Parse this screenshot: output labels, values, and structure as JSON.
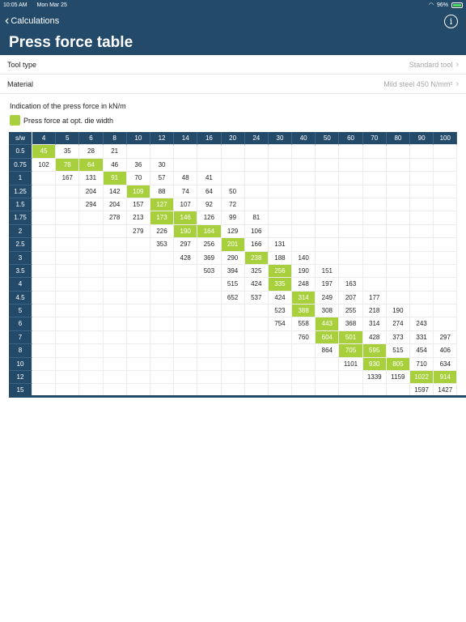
{
  "status": {
    "time": "10:05 AM",
    "date": "Mon Mar 25",
    "battery": "96%"
  },
  "nav": {
    "back_label": "Calculations",
    "title": "Press force table"
  },
  "settings": [
    {
      "label": "Tool type",
      "value": "Standard tool"
    },
    {
      "label": "Material",
      "value": "Mild steel 450 N/mm²"
    }
  ],
  "caption": "Indication of the press force in kN/m",
  "legend": "Press force at opt. die width",
  "colors": {
    "header": "#244a6a",
    "highlight": "#a8cf3c"
  },
  "table": {
    "corner": "s/w",
    "columns": [
      "4",
      "5",
      "6",
      "8",
      "10",
      "12",
      "14",
      "16",
      "20",
      "24",
      "30",
      "40",
      "50",
      "60",
      "70",
      "80",
      "90",
      "100"
    ],
    "rows": [
      {
        "label": "0.5",
        "cells": [
          "45",
          "35",
          "28",
          "21",
          "",
          "",
          "",
          "",
          "",
          "",
          "",
          "",
          "",
          "",
          "",
          "",
          "",
          ""
        ],
        "hl": [
          0
        ]
      },
      {
        "label": "0.75",
        "cells": [
          "102",
          "78",
          "64",
          "46",
          "36",
          "30",
          "",
          "",
          "",
          "",
          "",
          "",
          "",
          "",
          "",
          "",
          "",
          ""
        ],
        "hl": [
          1,
          2
        ]
      },
      {
        "label": "1",
        "cells": [
          "",
          "167",
          "131",
          "91",
          "70",
          "57",
          "48",
          "41",
          "",
          "",
          "",
          "",
          "",
          "",
          "",
          "",
          "",
          ""
        ],
        "hl": [
          3
        ]
      },
      {
        "label": "1.25",
        "cells": [
          "",
          "",
          "204",
          "142",
          "109",
          "88",
          "74",
          "64",
          "50",
          "",
          "",
          "",
          "",
          "",
          "",
          "",
          "",
          ""
        ],
        "hl": [
          4
        ]
      },
      {
        "label": "1.5",
        "cells": [
          "",
          "",
          "294",
          "204",
          "157",
          "127",
          "107",
          "92",
          "72",
          "",
          "",
          "",
          "",
          "",
          "",
          "",
          "",
          ""
        ],
        "hl": [
          5
        ]
      },
      {
        "label": "1.75",
        "cells": [
          "",
          "",
          "",
          "278",
          "213",
          "173",
          "146",
          "126",
          "99",
          "81",
          "",
          "",
          "",
          "",
          "",
          "",
          "",
          ""
        ],
        "hl": [
          5,
          6
        ]
      },
      {
        "label": "2",
        "cells": [
          "",
          "",
          "",
          "",
          "279",
          "226",
          "190",
          "164",
          "129",
          "106",
          "",
          "",
          "",
          "",
          "",
          "",
          "",
          ""
        ],
        "hl": [
          6,
          7
        ]
      },
      {
        "label": "2.5",
        "cells": [
          "",
          "",
          "",
          "",
          "",
          "353",
          "297",
          "256",
          "201",
          "166",
          "131",
          "",
          "",
          "",
          "",
          "",
          "",
          ""
        ],
        "hl": [
          8
        ]
      },
      {
        "label": "3",
        "cells": [
          "",
          "",
          "",
          "",
          "",
          "",
          "428",
          "369",
          "290",
          "238",
          "188",
          "140",
          "",
          "",
          "",
          "",
          "",
          ""
        ],
        "hl": [
          9
        ]
      },
      {
        "label": "3.5",
        "cells": [
          "",
          "",
          "",
          "",
          "",
          "",
          "",
          "503",
          "394",
          "325",
          "256",
          "190",
          "151",
          "",
          "",
          "",
          "",
          ""
        ],
        "hl": [
          10
        ]
      },
      {
        "label": "4",
        "cells": [
          "",
          "",
          "",
          "",
          "",
          "",
          "",
          "",
          "515",
          "424",
          "335",
          "248",
          "197",
          "163",
          "",
          "",
          "",
          ""
        ],
        "hl": [
          10
        ]
      },
      {
        "label": "4.5",
        "cells": [
          "",
          "",
          "",
          "",
          "",
          "",
          "",
          "",
          "652",
          "537",
          "424",
          "314",
          "249",
          "207",
          "177",
          "",
          "",
          ""
        ],
        "hl": [
          11
        ]
      },
      {
        "label": "5",
        "cells": [
          "",
          "",
          "",
          "",
          "",
          "",
          "",
          "",
          "",
          "",
          "523",
          "388",
          "308",
          "255",
          "218",
          "190",
          "",
          ""
        ],
        "hl": [
          11
        ]
      },
      {
        "label": "6",
        "cells": [
          "",
          "",
          "",
          "",
          "",
          "",
          "",
          "",
          "",
          "",
          "754",
          "558",
          "443",
          "368",
          "314",
          "274",
          "243",
          ""
        ],
        "hl": [
          12
        ]
      },
      {
        "label": "7",
        "cells": [
          "",
          "",
          "",
          "",
          "",
          "",
          "",
          "",
          "",
          "",
          "",
          "760",
          "604",
          "501",
          "428",
          "373",
          "331",
          "297"
        ],
        "hl": [
          12,
          13
        ]
      },
      {
        "label": "8",
        "cells": [
          "",
          "",
          "",
          "",
          "",
          "",
          "",
          "",
          "",
          "",
          "",
          "",
          "864",
          "705",
          "595",
          "515",
          "454",
          "406"
        ],
        "hl": [
          13,
          14
        ]
      },
      {
        "label": "10",
        "cells": [
          "",
          "",
          "",
          "",
          "",
          "",
          "",
          "",
          "",
          "",
          "",
          "",
          "",
          "1101",
          "930",
          "805",
          "710",
          "634"
        ],
        "hl": [
          14,
          15
        ]
      },
      {
        "label": "12",
        "cells": [
          "",
          "",
          "",
          "",
          "",
          "",
          "",
          "",
          "",
          "",
          "",
          "",
          "",
          "",
          "1339",
          "1159",
          "1022",
          "914"
        ],
        "hl": [
          16,
          17
        ]
      },
      {
        "label": "15",
        "cells": [
          "",
          "",
          "",
          "",
          "",
          "",
          "",
          "",
          "",
          "",
          "",
          "",
          "",
          "",
          "",
          "",
          "1597",
          "1427"
        ],
        "hl": []
      }
    ]
  }
}
